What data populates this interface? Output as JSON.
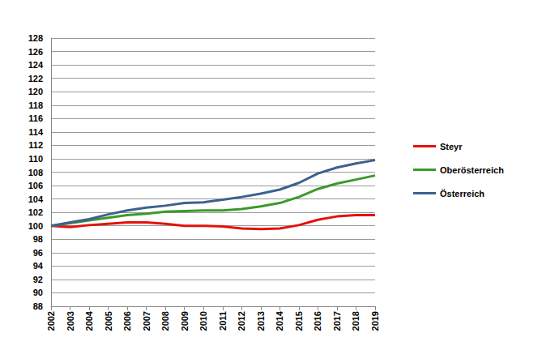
{
  "chart_data": {
    "type": "line",
    "categories": [
      "2002",
      "2003",
      "2004",
      "2005",
      "2006",
      "2007",
      "2008",
      "2009",
      "2010",
      "2011",
      "2012",
      "2013",
      "2014",
      "2015",
      "2016",
      "2017",
      "2018",
      "2019"
    ],
    "series": [
      {
        "name": "Steyr",
        "color": "#e3120b",
        "values": [
          100,
          99.8,
          100.1,
          100.3,
          100.5,
          100.5,
          100.3,
          100.0,
          100.0,
          99.9,
          99.6,
          99.5,
          99.6,
          100.1,
          100.9,
          101.4,
          101.6,
          101.6
        ]
      },
      {
        "name": "Oberösterreich",
        "color": "#3a9a2a",
        "values": [
          100,
          100.4,
          100.8,
          101.2,
          101.6,
          101.8,
          102.1,
          102.2,
          102.3,
          102.3,
          102.5,
          102.9,
          103.4,
          104.3,
          105.5,
          106.3,
          106.9,
          107.5
        ]
      },
      {
        "name": "Österreich",
        "color": "#3d6190",
        "values": [
          100,
          100.5,
          101.0,
          101.7,
          102.3,
          102.7,
          103.0,
          103.4,
          103.5,
          103.9,
          104.3,
          104.8,
          105.4,
          106.4,
          107.8,
          108.7,
          109.3,
          109.8
        ]
      }
    ],
    "ylim": [
      88,
      128
    ],
    "yticks": [
      88,
      90,
      92,
      94,
      96,
      98,
      100,
      102,
      104,
      106,
      108,
      110,
      112,
      114,
      116,
      118,
      120,
      122,
      124,
      126,
      128
    ],
    "grid": true,
    "legend": "right"
  }
}
